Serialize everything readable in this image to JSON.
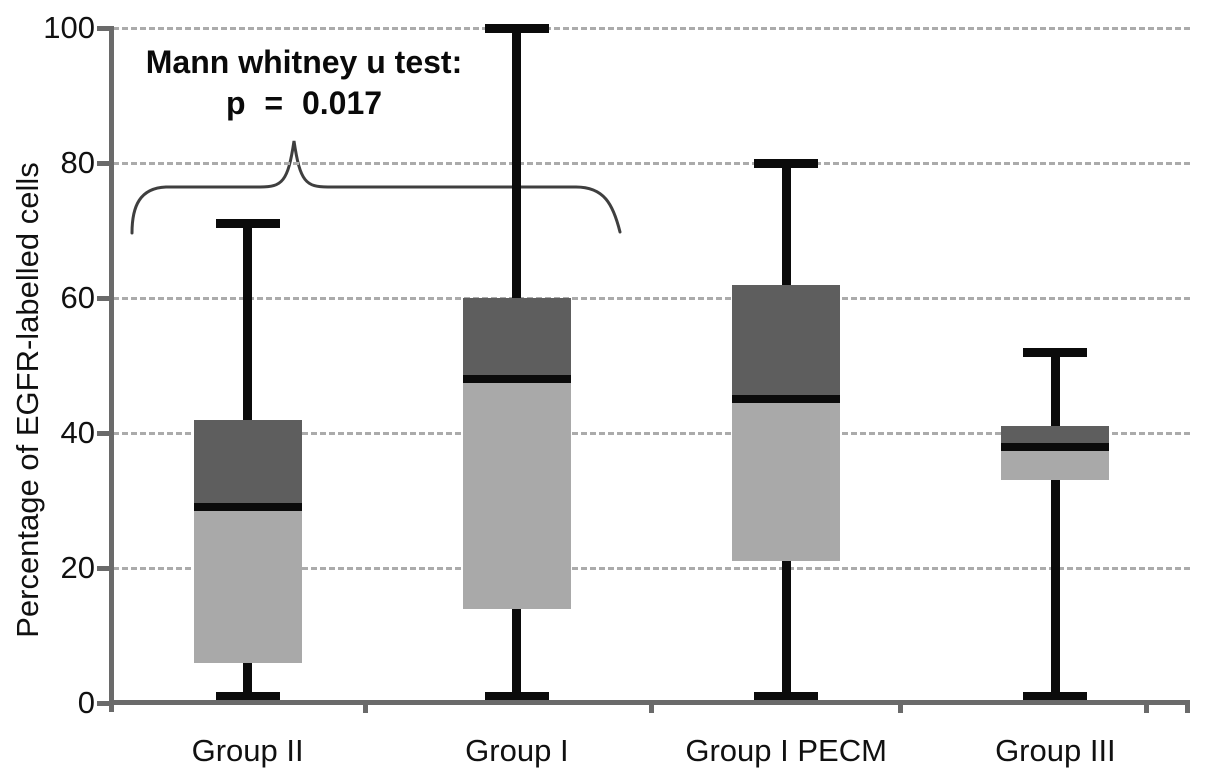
{
  "chart_data": {
    "type": "boxplot",
    "title": "",
    "xlabel": "",
    "ylabel": "Percentage of EGFR-labelled cells",
    "ylim": [
      0,
      100
    ],
    "yticks": [
      0,
      20,
      40,
      60,
      80,
      100
    ],
    "grid": "horizontal dashed gridlines at 20, 40, 60, 80, 100",
    "legend": "none",
    "categories": [
      "Group II",
      "Group I",
      "Group I PECM",
      "Group III"
    ],
    "series": [
      {
        "name": "Group II",
        "whisker_low": 1,
        "q1": 6,
        "median": 29,
        "q3": 42,
        "whisker_high": 71
      },
      {
        "name": "Group I",
        "whisker_low": 1,
        "q1": 14,
        "median": 48,
        "q3": 60,
        "whisker_high": 100
      },
      {
        "name": "Group I PECM",
        "whisker_low": 1,
        "q1": 21,
        "median": 45,
        "q3": 62,
        "whisker_high": 80
      },
      {
        "name": "Group III",
        "whisker_low": 1,
        "q1": 33,
        "median": 38,
        "q3": 41,
        "whisker_high": 52
      }
    ],
    "annotation": {
      "line1": "Mann whitney u test:",
      "line2": "p = 0.017",
      "brace_spans_groups": [
        "Group II",
        "Group I"
      ]
    },
    "colors": {
      "box_upper_quartile": "#5e5e5e",
      "box_lower_quartile": "#a9a9a9",
      "median": "#0b0b0b",
      "whisker": "#0b0b0b",
      "axis": "#6a6a6a",
      "gridline": "#ababab",
      "brace": "#3f3f3f",
      "text": "#111111",
      "background": "#ffffff"
    }
  }
}
